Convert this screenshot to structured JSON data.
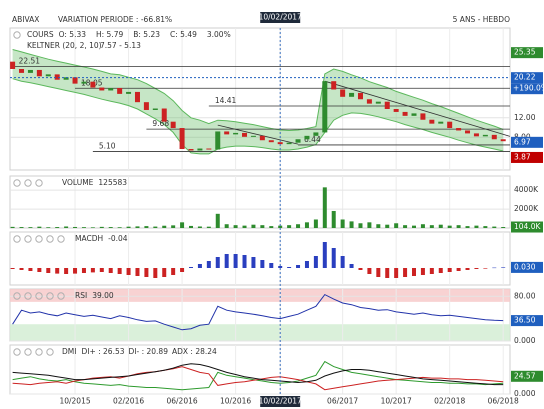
{
  "header": {
    "symbol": "ABIVAX",
    "variation": "VARIATION PERIODE : -66.81%",
    "cursor_date": "10/02/2017",
    "period": "5 ANS - HEBDO"
  },
  "chart_data": [
    {
      "type": "candlestick",
      "title": "COURS",
      "legend": [
        "O: 5.33",
        "H: 5.79",
        "B: 5.23",
        "C: 5.49",
        "3.00%"
      ],
      "categories": [
        null,
        null,
        null,
        null,
        null,
        null,
        null,
        "10/2015",
        null,
        null,
        null,
        null,
        null,
        "02/2016",
        null,
        null,
        null,
        null,
        null,
        "06/2016",
        null,
        null,
        null,
        null,
        null,
        "10/2016",
        null,
        null,
        null,
        null,
        "10/02/2017",
        null,
        null,
        null,
        null,
        null,
        null,
        "06/2017",
        null,
        null,
        null,
        null,
        null,
        "10/2017",
        null,
        null,
        null,
        null,
        null,
        "02/2018",
        null,
        null,
        null,
        null,
        null,
        "06/2018"
      ],
      "open": [
        23.5,
        22.0,
        21.2,
        21.8,
        20.5,
        20.9,
        19.8,
        20.3,
        19.0,
        19.4,
        18.2,
        17.6,
        18.1,
        16.9,
        17.3,
        15.2,
        13.6,
        13.9,
        11.2,
        9.9,
        5.6,
        5.3,
        5.7,
        5.5,
        9.2,
        8.6,
        8.9,
        8.1,
        8.3,
        7.4,
        7.0,
        6.6,
        6.9,
        7.6,
        8.3,
        9.0,
        19.5,
        17.8,
        16.3,
        17.1,
        15.8,
        14.9,
        15.3,
        13.8,
        13.2,
        12.4,
        12.9,
        11.6,
        10.8,
        11.2,
        9.9,
        9.4,
        8.8,
        8.2,
        8.5,
        7.6
      ],
      "close": [
        22.0,
        21.2,
        21.8,
        20.5,
        20.9,
        19.8,
        20.3,
        19.0,
        19.4,
        18.2,
        17.6,
        18.1,
        16.9,
        17.3,
        15.2,
        13.6,
        13.9,
        11.2,
        9.9,
        5.6,
        5.3,
        5.7,
        5.5,
        9.2,
        8.6,
        8.9,
        8.1,
        8.3,
        7.4,
        7.0,
        6.6,
        6.9,
        7.6,
        8.3,
        9.0,
        19.5,
        17.8,
        16.3,
        17.1,
        15.8,
        14.9,
        15.3,
        13.8,
        13.2,
        12.4,
        12.9,
        11.6,
        10.8,
        11.2,
        9.9,
        9.4,
        8.8,
        8.2,
        8.5,
        7.6,
        7.2
      ],
      "up_color": "#2e8b2e",
      "down_color": "#cc2222",
      "band": {
        "name": "KELTNER (20, 2, 10)",
        "value_text": "7.57 - 5.13",
        "color": "#5cb85c",
        "upper": [
          26,
          25.5,
          25,
          24.5,
          24,
          23.6,
          23.2,
          22.8,
          22.4,
          22,
          21.5,
          21,
          20.8,
          20.3,
          19.8,
          19,
          18,
          17,
          15.5,
          13.5,
          12,
          11.5,
          10.8,
          11.5,
          11.4,
          11.2,
          10.9,
          10.6,
          10.2,
          9.8,
          9.5,
          9.4,
          9.5,
          9.8,
          10.2,
          21,
          22,
          21.5,
          20.8,
          20.2,
          19.4,
          18.8,
          18.2,
          17.4,
          16.8,
          16.2,
          15.6,
          14.9,
          14.3,
          13.6,
          12.9,
          12.2,
          11.5,
          10.9,
          10.3,
          9.6
        ],
        "lower": [
          20,
          19.5,
          19.2,
          18.8,
          18.4,
          18.0,
          17.6,
          17.2,
          16.8,
          16.3,
          15.8,
          15.4,
          15.0,
          14.5,
          13.8,
          12.8,
          11.8,
          10.6,
          9.0,
          6.5,
          4.8,
          4.6,
          4.6,
          5.6,
          6.0,
          6.2,
          6.2,
          6.1,
          5.9,
          5.6,
          5.4,
          5.4,
          5.6,
          6.0,
          6.5,
          9.0,
          11.5,
          12.5,
          13.0,
          12.9,
          12.6,
          12.2,
          11.7,
          11.2,
          10.6,
          10.1,
          9.6,
          9.0,
          8.5,
          8.0,
          7.4,
          6.9,
          6.4,
          6.0,
          5.6,
          5.2
        ]
      },
      "levels": [
        22.51,
        18.05,
        14.41,
        9.68,
        6.44,
        {
          "value": 5.1,
          "label": "5.10"
        }
      ],
      "ylim": [
        1.3,
        30.4
      ],
      "yticks": [
        {
          "value": 12,
          "label": "12.00"
        },
        {
          "value": 8,
          "label": "8.00"
        }
      ],
      "markers": [
        {
          "value": 25.35,
          "color": "#2e8b2e"
        },
        {
          "value": 20.22,
          "color": "#1f5fbf",
          "change": "+190.0%"
        },
        {
          "value": 6.97,
          "color": "#1f5fbf"
        },
        {
          "value": 3.87,
          "color": "#c00000"
        }
      ]
    },
    {
      "type": "bar",
      "title": "VOLUME",
      "value_text": "125583",
      "color": "#2e8b2e",
      "values": [
        120,
        100,
        90,
        140,
        80,
        100,
        160,
        110,
        90,
        70,
        120,
        100,
        80,
        140,
        170,
        200,
        150,
        240,
        280,
        600,
        220,
        160,
        140,
        1500,
        400,
        300,
        250,
        350,
        300,
        200,
        250,
        300,
        400,
        600,
        900,
        4300,
        1800,
        900,
        700,
        500,
        600,
        400,
        350,
        500,
        300,
        250,
        400,
        300,
        350,
        250,
        300,
        200,
        250,
        200,
        150,
        104
      ],
      "ylim": [
        0,
        5500
      ],
      "yticks": [
        {
          "value": 4000,
          "label": "4000K"
        },
        {
          "value": 2000,
          "label": "2000K"
        }
      ],
      "markers": [
        {
          "value": 104,
          "label": "104.0K",
          "color": "#2e8b2e"
        }
      ]
    },
    {
      "type": "bar",
      "title": "MACDH",
      "value_text": "-0.04",
      "pos_color": "#2a3fbf",
      "neg_color": "#cc2222",
      "values": [
        -0.05,
        -0.1,
        -0.15,
        -0.2,
        -0.25,
        -0.28,
        -0.3,
        -0.28,
        -0.25,
        -0.22,
        -0.2,
        -0.25,
        -0.3,
        -0.35,
        -0.4,
        -0.45,
        -0.5,
        -0.45,
        -0.35,
        -0.2,
        0.05,
        0.2,
        0.35,
        0.55,
        0.7,
        0.7,
        0.65,
        0.55,
        0.4,
        0.25,
        0.1,
        0.05,
        0.15,
        0.35,
        0.6,
        1.3,
        1.0,
        0.6,
        0.2,
        -0.1,
        -0.3,
        -0.45,
        -0.5,
        -0.5,
        -0.45,
        -0.4,
        -0.35,
        -0.3,
        -0.25,
        -0.2,
        -0.15,
        -0.1,
        -0.05,
        -0.03,
        0.02,
        0.03
      ],
      "ylim": [
        -0.85,
        1.8
      ],
      "markers": [
        {
          "value": 0.03,
          "label": "0.030",
          "color": "#1f5fbf"
        }
      ]
    },
    {
      "type": "line",
      "title": "RSI",
      "value_text": "39.00",
      "color": "#2233aa",
      "values": [
        30,
        55,
        50,
        52,
        48,
        45,
        50,
        47,
        44,
        46,
        43,
        40,
        45,
        42,
        38,
        35,
        36,
        30,
        25,
        20,
        22,
        28,
        30,
        62,
        55,
        52,
        50,
        48,
        45,
        42,
        40,
        44,
        48,
        55,
        62,
        83,
        75,
        68,
        65,
        60,
        58,
        55,
        56,
        52,
        50,
        48,
        50,
        47,
        45,
        46,
        44,
        42,
        40,
        38,
        37,
        36.5
      ],
      "ylim": [
        0,
        93
      ],
      "yticks": [
        {
          "value": 80,
          "label": "80.00"
        },
        {
          "value": 0,
          "label": "0.000"
        }
      ],
      "bands": [
        {
          "from": 70,
          "to": 93,
          "color": "#f7caca"
        },
        {
          "from": 0,
          "to": 30,
          "color": "#d3edd3"
        }
      ],
      "markers": [
        {
          "value": 36.5,
          "label": "36.50",
          "color": "#1f5fbf"
        }
      ]
    },
    {
      "type": "line",
      "title": "DMI",
      "series": [
        {
          "name": "DI+ : 26.53",
          "color": "#2e9b2e",
          "values": [
            20,
            22,
            24,
            21,
            19,
            18,
            20,
            17,
            15,
            14,
            13,
            12,
            13,
            11,
            10,
            9,
            9,
            8,
            7,
            6,
            7,
            8,
            9,
            30,
            26,
            24,
            22,
            20,
            18,
            16,
            15,
            16,
            18,
            22,
            26,
            45,
            38,
            34,
            30,
            28,
            26,
            24,
            22,
            20,
            19,
            18,
            17,
            16,
            16,
            15,
            15,
            14,
            14,
            13,
            14,
            15
          ]
        },
        {
          "name": "DI- : 20.89",
          "color": "#cc2222",
          "values": [
            15,
            14,
            13,
            15,
            16,
            17,
            15,
            18,
            20,
            22,
            23,
            24,
            22,
            25,
            28,
            30,
            31,
            33,
            35,
            38,
            34,
            30,
            28,
            12,
            14,
            16,
            17,
            19,
            21,
            23,
            24,
            22,
            20,
            17,
            14,
            6,
            8,
            10,
            12,
            14,
            16,
            18,
            19,
            20,
            21,
            22,
            23,
            22,
            22,
            21,
            21,
            20,
            20,
            19,
            18,
            17
          ]
        },
        {
          "name": "ADX : 28.24",
          "color": "#111111",
          "values": [
            30,
            29,
            28,
            27,
            26,
            24,
            22,
            20,
            20,
            21,
            22,
            23,
            24,
            25,
            27,
            29,
            31,
            33,
            36,
            40,
            42,
            41,
            38,
            34,
            30,
            27,
            24,
            22,
            20,
            19,
            18,
            17,
            16,
            17,
            19,
            25,
            29,
            32,
            34,
            34,
            33,
            31,
            29,
            27,
            25,
            23,
            21,
            20,
            19,
            18,
            17,
            16,
            15,
            14,
            13,
            13
          ]
        }
      ],
      "ylim": [
        0,
        68
      ],
      "yticks": [
        {
          "value": 0,
          "label": "0.000"
        }
      ],
      "markers": [
        {
          "value": 24.57,
          "color": "#2e8b2e"
        }
      ]
    }
  ]
}
